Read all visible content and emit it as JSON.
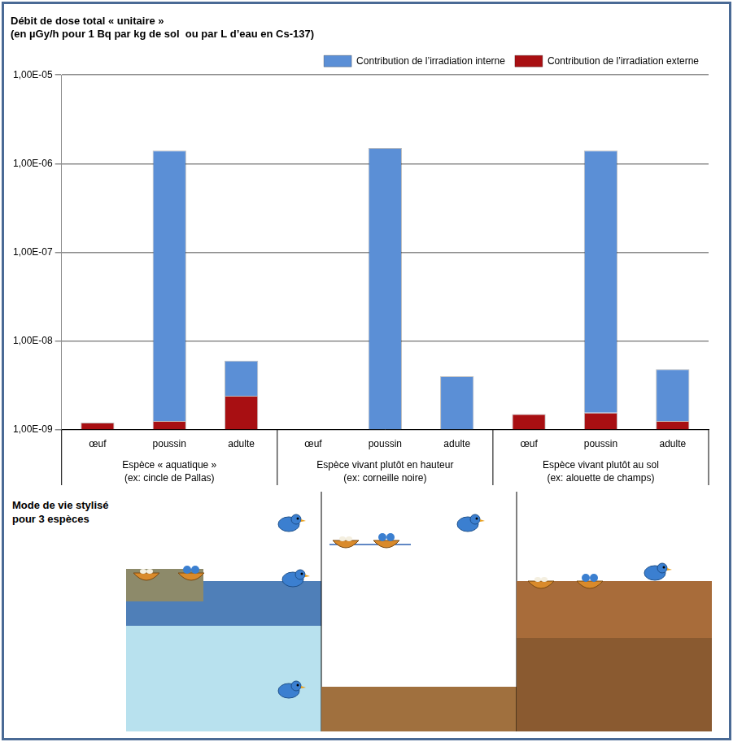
{
  "chart_data": {
    "type": "bar",
    "title": [
      "Débit de dose total « unitaire »",
      "(en µGy/h pour 1 Bq par kg de sol  ou par L d’eau en Cs-137)"
    ],
    "categories": [
      "œuf",
      "poussin",
      "adulte",
      "œuf",
      "poussin",
      "adulte",
      "œuf",
      "poussin",
      "adulte"
    ],
    "groups": [
      {
        "label": "Espèce « aquatique »",
        "example": "(ex: cincle de Pallas)"
      },
      {
        "label": "Espèce vivant plutôt en hauteur",
        "example": "(ex: corneille noire)"
      },
      {
        "label": "Espèce vivant plutôt au sol",
        "example": "(ex: alouette de champs)"
      }
    ],
    "series": [
      {
        "name": "Contribution de l’irradiation externe",
        "color": "#a80f12",
        "values": [
          1.2e-09,
          1.25e-09,
          2.4e-09,
          null,
          null,
          null,
          1.5e-09,
          1.55e-09,
          1.25e-09
        ]
      },
      {
        "name": "Contribution de l’irradiation interne",
        "color": "#5b8fd6",
        "values": [
          null,
          1.4e-06,
          3.6e-09,
          null,
          1.5e-06,
          4e-09,
          null,
          1.4e-06,
          3.55e-09
        ]
      }
    ],
    "stacked": true,
    "log": "y",
    "ylim": [
      1e-09,
      1e-05
    ],
    "yticks": [
      {
        "value": 1e-09,
        "label": "1,00E-09"
      },
      {
        "value": 1e-08,
        "label": "1,00E-08"
      },
      {
        "value": 1e-07,
        "label": "1,00E-07"
      },
      {
        "value": 1e-06,
        "label": "1,00E-06"
      },
      {
        "value": 1e-05,
        "label": "1,00E-05"
      }
    ],
    "grid": true,
    "legend": "top right"
  },
  "illustration": {
    "caption": "Mode de vie stylisé pour 3 espèces"
  }
}
